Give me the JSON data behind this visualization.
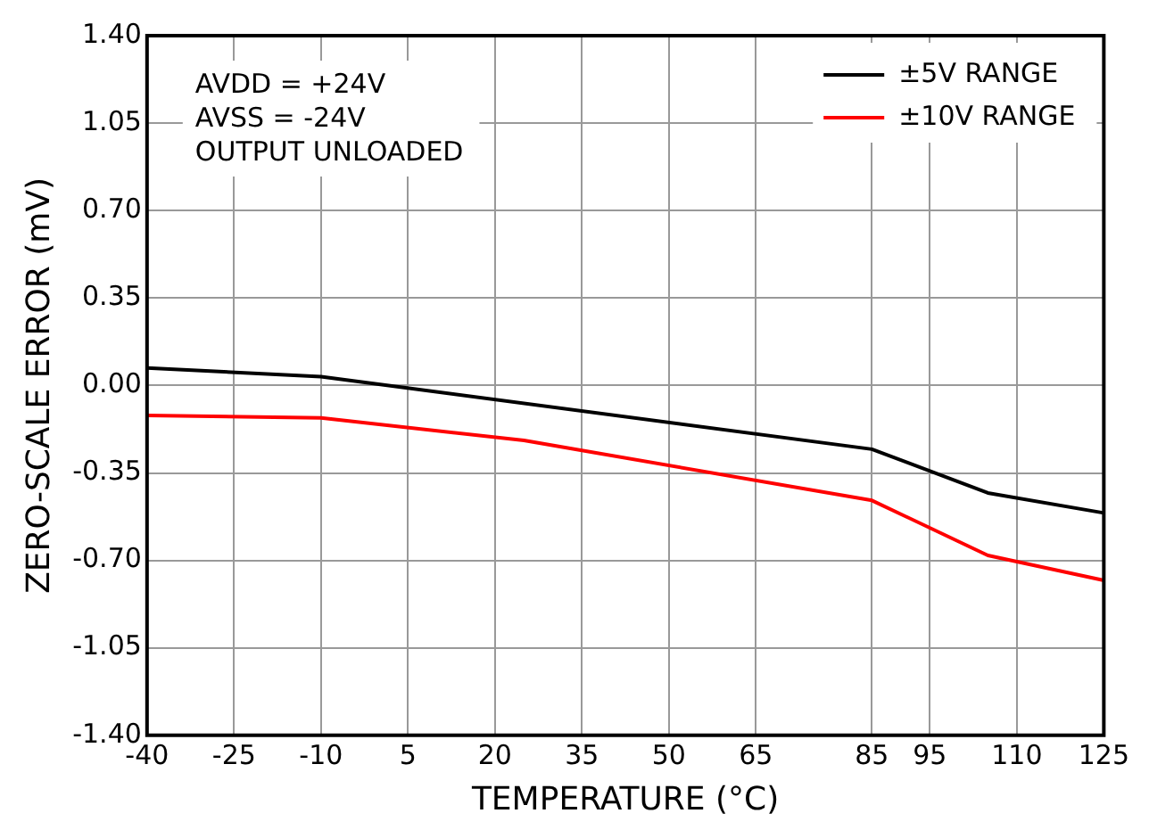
{
  "chart_data": {
    "type": "line",
    "xlabel": "TEMPERATURE (°C)",
    "ylabel": "ZERO-SCALE ERROR (mV)",
    "annotations": [
      "AVDD = +24V",
      "AVSS = -24V",
      "OUTPUT UNLOADED"
    ],
    "series": [
      {
        "name": "±5V RANGE",
        "color": "#000000",
        "x": [
          -40,
          -10,
          85,
          105,
          125
        ],
        "values": [
          0.07,
          0.035,
          -0.255,
          -0.43,
          -0.51
        ]
      },
      {
        "name": "±10V RANGE",
        "color": "#ff0000",
        "x": [
          -40,
          -10,
          25,
          85,
          105,
          125
        ],
        "values": [
          -0.12,
          -0.13,
          -0.22,
          -0.46,
          -0.68,
          -0.78
        ]
      }
    ],
    "xlim": [
      -40,
      125
    ],
    "xticks": [
      -40,
      -25,
      -10,
      5,
      20,
      35,
      50,
      65,
      85,
      95,
      110,
      125
    ],
    "ylim": [
      -1.4,
      1.4
    ],
    "yticks": [
      {
        "value": -1.4,
        "label": "-1.40"
      },
      {
        "value": -1.05,
        "label": "-1.05"
      },
      {
        "value": -0.7,
        "label": "-0.70"
      },
      {
        "value": -0.35,
        "label": "-0.35"
      },
      {
        "value": 0,
        "label": "0.00"
      },
      {
        "value": 0.35,
        "label": "0.35"
      },
      {
        "value": 0.7,
        "label": "0.70"
      },
      {
        "value": 1.05,
        "label": "1.05"
      },
      {
        "value": 1.4,
        "label": "1.40"
      }
    ],
    "grid": true,
    "legend": "top right",
    "marker": "none",
    "line_style": "solid"
  }
}
